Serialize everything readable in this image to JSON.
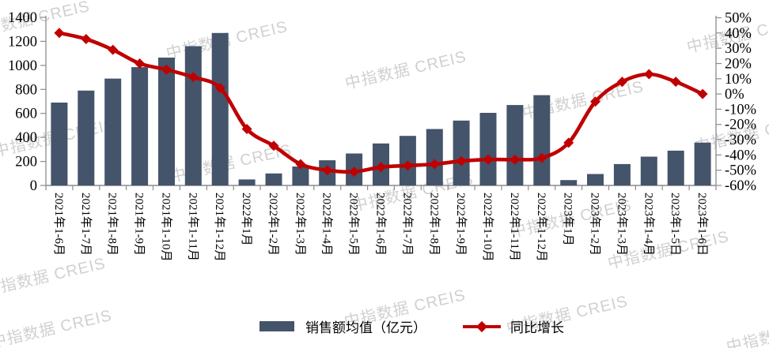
{
  "watermark": {
    "text": "中指数据 CREIS"
  },
  "chart_data": {
    "type": "bar+line",
    "categories": [
      "2021年1-6月",
      "2021年1-7月",
      "2021年1-8月",
      "2021年1-9月",
      "2021年1-10月",
      "2021年1-11月",
      "2021年1-12月",
      "2022年1月",
      "2022年1-2月",
      "2022年1-3月",
      "2022年1-4月",
      "2022年1-5月",
      "2022年1-6月",
      "2022年1-7月",
      "2022年1-8月",
      "2022年1-9月",
      "2022年1-10月",
      "2022年1-11月",
      "2022年1-12月",
      "2023年1月",
      "2023年1-2月",
      "2023年1-3月",
      "2023年1-4月",
      "2023年1-5日",
      "2023年1-6日"
    ],
    "series": [
      {
        "name": "销售额均值（亿元）",
        "type": "bar",
        "axis": "left",
        "values": [
          690,
          790,
          890,
          985,
          1065,
          1160,
          1270,
          50,
          100,
          158,
          210,
          266,
          350,
          413,
          470,
          540,
          605,
          670,
          752,
          45,
          95,
          178,
          240,
          290,
          357
        ]
      },
      {
        "name": "同比增长",
        "type": "line",
        "axis": "right",
        "values": [
          40,
          36,
          29,
          20,
          16,
          11,
          4,
          -23,
          -34,
          -46,
          -50,
          -51,
          -48,
          -47,
          -46,
          -44,
          -43,
          -43,
          -42,
          -32,
          -5,
          8,
          13,
          8,
          0
        ]
      }
    ],
    "left_axis": {
      "min": 0,
      "max": 1400,
      "ticks": [
        "0",
        "200",
        "400",
        "600",
        "800",
        "1000",
        "1200",
        "1400"
      ]
    },
    "right_axis": {
      "min": -60,
      "max": 50,
      "ticks": [
        "50%",
        "40%",
        "30%",
        "20%",
        "10%",
        "0%",
        "-10%",
        "-20%",
        "-30%",
        "-40%",
        "-50%",
        "-60%"
      ]
    },
    "legend": {
      "bar_label": "销售额均值（亿元）",
      "line_label": "同比增长",
      "position": "bottom"
    },
    "colors": {
      "bar": "#44546A",
      "line": "#C00000",
      "axis": "#8C8C8C",
      "text": "#000000",
      "watermark": "#AAAAAA"
    },
    "grid": false
  }
}
